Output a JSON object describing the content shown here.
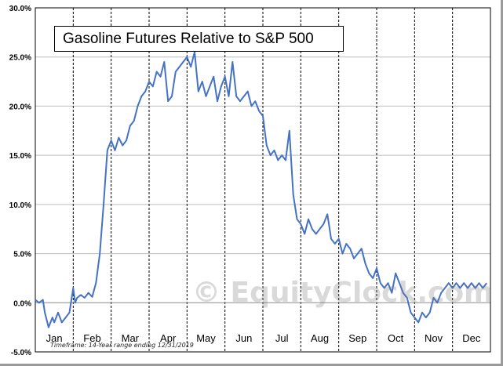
{
  "chart_data": {
    "type": "line",
    "title": "Gasoline Futures Relative to S&P 500",
    "xlabel": "",
    "ylabel": "",
    "ylim": [
      -5,
      30
    ],
    "yticks": [
      "30.0%",
      "25.0%",
      "20.0%",
      "15.0%",
      "10.0%",
      "5.0%",
      "0.0%",
      "-5.0%"
    ],
    "ytick_values": [
      30,
      25,
      20,
      15,
      10,
      5,
      0,
      -5
    ],
    "months": [
      "Jan",
      "Feb",
      "Mar",
      "Apr",
      "May",
      "Jun",
      "Jul",
      "Aug",
      "Sep",
      "Oct",
      "Nov",
      "Dec"
    ],
    "grid": {
      "vertical": "dashed",
      "horizontal": "solid"
    },
    "series": [
      {
        "color": "#4472c4",
        "x": [
          0.0,
          0.1,
          0.2,
          0.25,
          0.35,
          0.45,
          0.5,
          0.6,
          0.7,
          0.8,
          0.9,
          1.0,
          1.05,
          1.1,
          1.2,
          1.3,
          1.4,
          1.5,
          1.6,
          1.7,
          1.8,
          1.9,
          2.0,
          2.05,
          2.1,
          2.2,
          2.3,
          2.4,
          2.5,
          2.6,
          2.7,
          2.8,
          2.9,
          3.0,
          3.1,
          3.2,
          3.3,
          3.4,
          3.5,
          3.6,
          3.7,
          3.8,
          3.9,
          4.0,
          4.1,
          4.2,
          4.3,
          4.4,
          4.5,
          4.6,
          4.7,
          4.8,
          4.9,
          5.0,
          5.1,
          5.2,
          5.3,
          5.4,
          5.5,
          5.6,
          5.7,
          5.8,
          5.9,
          6.0,
          6.1,
          6.2,
          6.3,
          6.4,
          6.5,
          6.6,
          6.7,
          6.8,
          6.9,
          7.0,
          7.1,
          7.2,
          7.3,
          7.4,
          7.5,
          7.6,
          7.7,
          7.8,
          7.9,
          8.0,
          8.1,
          8.2,
          8.3,
          8.4,
          8.5,
          8.6,
          8.7,
          8.8,
          8.9,
          9.0,
          9.1,
          9.2,
          9.3,
          9.4,
          9.5,
          9.6,
          9.7,
          9.8,
          9.9,
          10.0,
          10.1,
          10.2,
          10.3,
          10.4,
          10.5,
          10.6,
          10.7,
          10.8,
          10.9,
          11.0,
          11.1,
          11.2,
          11.3,
          11.4,
          11.5,
          11.6,
          11.7,
          11.8,
          11.9
        ],
        "values": [
          0.3,
          0.0,
          0.3,
          -1.0,
          -2.5,
          -1.5,
          -2.0,
          -1.0,
          -2.0,
          -1.5,
          -1.0,
          1.5,
          0.0,
          0.5,
          0.8,
          0.5,
          1.0,
          0.6,
          2.0,
          5.0,
          10.0,
          15.5,
          16.5,
          16.0,
          15.5,
          16.8,
          16.0,
          16.5,
          18.0,
          18.5,
          20.0,
          21.0,
          21.5,
          22.5,
          22.0,
          23.5,
          23.0,
          24.5,
          20.5,
          21.0,
          23.5,
          24.0,
          24.5,
          25.0,
          24.0,
          25.5,
          21.5,
          22.5,
          21.0,
          22.0,
          23.0,
          20.5,
          22.0,
          23.0,
          21.0,
          24.5,
          21.0,
          20.5,
          21.0,
          21.5,
          20.0,
          20.5,
          19.5,
          19.0,
          16.0,
          15.0,
          15.5,
          14.5,
          15.0,
          14.5,
          17.5,
          11.0,
          8.5,
          8.0,
          7.0,
          8.5,
          7.5,
          7.0,
          7.5,
          8.0,
          9.0,
          6.5,
          6.0,
          6.5,
          5.0,
          6.0,
          5.5,
          4.5,
          5.0,
          5.5,
          4.0,
          3.0,
          2.5,
          3.5,
          2.0,
          1.5,
          2.0,
          1.0,
          3.0,
          2.0,
          1.0,
          0.5,
          -1.0,
          -1.5,
          -2.0,
          -1.0,
          -1.5,
          -1.0,
          0.5,
          0.0,
          1.0,
          1.5,
          2.0,
          1.5,
          2.0,
          1.5,
          2.0,
          1.5,
          2.0,
          1.5,
          2.0,
          1.5,
          2.0
        ]
      }
    ]
  },
  "footnote": "Timeframe:  14-Year range ending 12/31/2019",
  "watermark": "© EquityClock.com"
}
